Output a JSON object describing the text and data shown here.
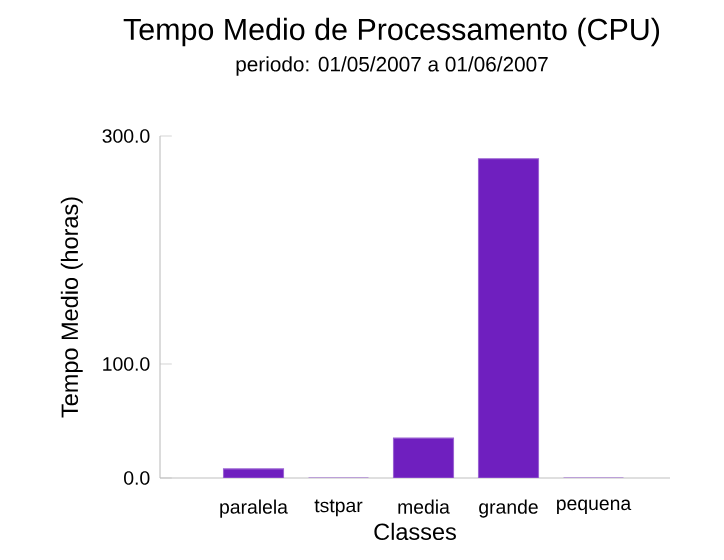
{
  "chart_data": {
    "type": "bar",
    "title": "Tempo Medio de Processamento (CPU)",
    "subtitle": "periodo: 01/05/2007 a 01/06/2007",
    "xlabel": "Classes",
    "ylabel": "Tempo Medio (horas)",
    "categories": [
      "paralela",
      "tstpar",
      "media",
      "grande",
      "pequena"
    ],
    "values": [
      8,
      0,
      35,
      280,
      0
    ],
    "color": "#6f1fbf",
    "ylim": [
      0,
      300
    ],
    "yticks": [
      {
        "value": 0,
        "label": "0.0"
      },
      {
        "value": 100,
        "label": "100.0"
      },
      {
        "value": 300,
        "label": "300.0"
      }
    ],
    "grid": false
  }
}
